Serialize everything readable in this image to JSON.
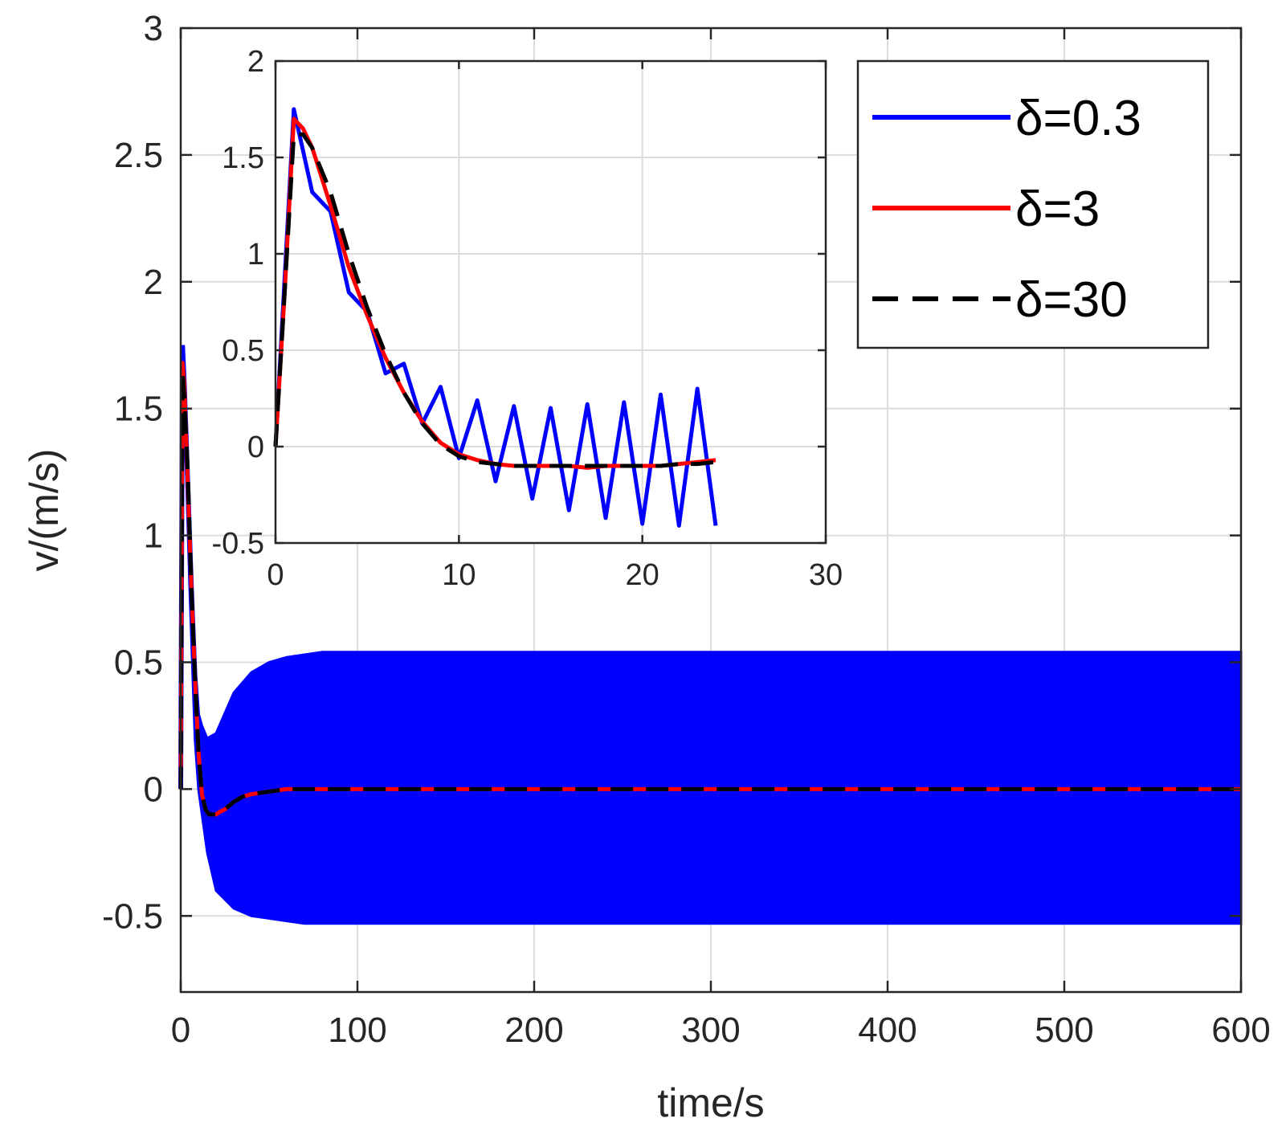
{
  "chart_data": [
    {
      "type": "line",
      "title": "",
      "xlabel": "time/s",
      "ylabel": "v/(m/s)",
      "xlim": [
        0,
        600
      ],
      "ylim": [
        -0.8,
        3
      ],
      "xticks": [
        "0",
        "100",
        "200",
        "300",
        "400",
        "500",
        "600"
      ],
      "yticks": [
        "-0.5",
        "0",
        "0.5",
        "1",
        "1.5",
        "2",
        "2.5",
        "3"
      ],
      "grid": true,
      "legend_position": "top-right",
      "series": [
        {
          "name": "δ=0.3",
          "color": "#0000ff",
          "style": "solid",
          "note_values": "oscillation envelope",
          "x": [
            0,
            1,
            2,
            5,
            8,
            10,
            12,
            15,
            20,
            30,
            40,
            50,
            60,
            70,
            80,
            100,
            150,
            200,
            300,
            400,
            500,
            600
          ],
          "upper": [
            0,
            1.75,
            1.6,
            1.0,
            0.45,
            0.3,
            0.25,
            0.2,
            0.22,
            0.38,
            0.46,
            0.5,
            0.52,
            0.53,
            0.54,
            0.54,
            0.54,
            0.54,
            0.54,
            0.54,
            0.54,
            0.54
          ],
          "lower": [
            0,
            1.75,
            1.5,
            0.8,
            0.2,
            0.0,
            -0.1,
            -0.25,
            -0.4,
            -0.47,
            -0.5,
            -0.51,
            -0.52,
            -0.53,
            -0.53,
            -0.53,
            -0.53,
            -0.53,
            -0.53,
            -0.53,
            -0.53,
            -0.53
          ]
        },
        {
          "name": "δ=3",
          "color": "#ff0000",
          "style": "solid",
          "x": [
            0,
            1,
            2,
            4,
            6,
            8,
            10,
            12,
            14,
            16,
            18,
            20,
            22,
            25,
            30,
            35,
            40,
            50,
            60,
            70,
            80,
            100,
            200,
            300,
            400,
            500,
            600
          ],
          "y": [
            0,
            1.68,
            1.6,
            1.2,
            0.8,
            0.45,
            0.15,
            -0.02,
            -0.08,
            -0.1,
            -0.1,
            -0.1,
            -0.09,
            -0.08,
            -0.05,
            -0.03,
            -0.02,
            -0.01,
            0,
            0,
            0,
            0,
            0,
            0,
            0,
            0,
            0
          ]
        },
        {
          "name": "δ=30",
          "color": "#000000",
          "style": "dashed",
          "x": [
            0,
            1,
            2,
            4,
            6,
            8,
            10,
            12,
            14,
            16,
            18,
            20,
            22,
            25,
            30,
            35,
            40,
            50,
            60,
            70,
            80,
            100,
            200,
            300,
            400,
            500,
            600
          ],
          "y": [
            0,
            1.65,
            1.55,
            1.25,
            0.8,
            0.45,
            0.15,
            -0.02,
            -0.08,
            -0.1,
            -0.1,
            -0.1,
            -0.09,
            -0.08,
            -0.05,
            -0.03,
            -0.02,
            -0.01,
            0,
            0,
            0,
            0,
            0,
            0,
            0,
            0,
            0
          ]
        }
      ]
    },
    {
      "type": "line",
      "title": "",
      "xlabel": "",
      "ylabel": "",
      "xlim": [
        0,
        30
      ],
      "ylim": [
        -0.5,
        2
      ],
      "xticks": [
        "0",
        "10",
        "20",
        "30"
      ],
      "yticks": [
        "-0.5",
        "0",
        "0.5",
        "1",
        "1.5",
        "2"
      ],
      "grid": true,
      "series": [
        {
          "name": "δ=0.3",
          "color": "#0000ff",
          "style": "solid",
          "x": [
            0,
            1,
            2,
            3,
            4,
            5,
            6,
            7,
            8,
            9,
            10,
            11,
            12,
            13,
            14,
            15,
            16,
            17,
            18,
            19,
            20,
            21,
            22,
            23,
            24
          ],
          "y": [
            0,
            1.75,
            1.32,
            1.22,
            0.8,
            0.7,
            0.38,
            0.43,
            0.12,
            0.31,
            -0.06,
            0.24,
            -0.18,
            0.21,
            -0.27,
            0.2,
            -0.33,
            0.22,
            -0.37,
            0.23,
            -0.4,
            0.27,
            -0.41,
            0.3,
            -0.41
          ]
        },
        {
          "name": "δ=3",
          "color": "#ff0000",
          "style": "solid",
          "x": [
            0,
            0.5,
            1,
            1.5,
            2,
            3,
            4,
            5,
            6,
            7,
            8,
            9,
            10,
            11,
            12,
            13,
            14,
            15,
            16,
            17,
            18,
            19,
            20,
            21,
            22,
            23,
            24
          ],
          "y": [
            0,
            0.8,
            1.7,
            1.65,
            1.55,
            1.25,
            0.93,
            0.68,
            0.46,
            0.28,
            0.13,
            0.02,
            -0.04,
            -0.07,
            -0.09,
            -0.1,
            -0.1,
            -0.1,
            -0.1,
            -0.11,
            -0.1,
            -0.1,
            -0.1,
            -0.1,
            -0.09,
            -0.08,
            -0.07
          ]
        },
        {
          "name": "δ=30",
          "color": "#000000",
          "style": "dashed",
          "x": [
            0,
            0.5,
            1,
            1.5,
            2,
            3,
            4,
            5,
            6,
            7,
            8,
            9,
            10,
            11,
            12,
            13,
            14,
            15,
            16,
            17,
            18,
            19,
            20,
            21,
            22,
            23,
            24
          ],
          "y": [
            0,
            0.8,
            1.62,
            1.62,
            1.55,
            1.32,
            1.0,
            0.72,
            0.48,
            0.28,
            0.12,
            0.01,
            -0.05,
            -0.08,
            -0.09,
            -0.1,
            -0.1,
            -0.1,
            -0.1,
            -0.1,
            -0.1,
            -0.1,
            -0.1,
            -0.1,
            -0.09,
            -0.09,
            -0.08
          ]
        }
      ]
    }
  ]
}
